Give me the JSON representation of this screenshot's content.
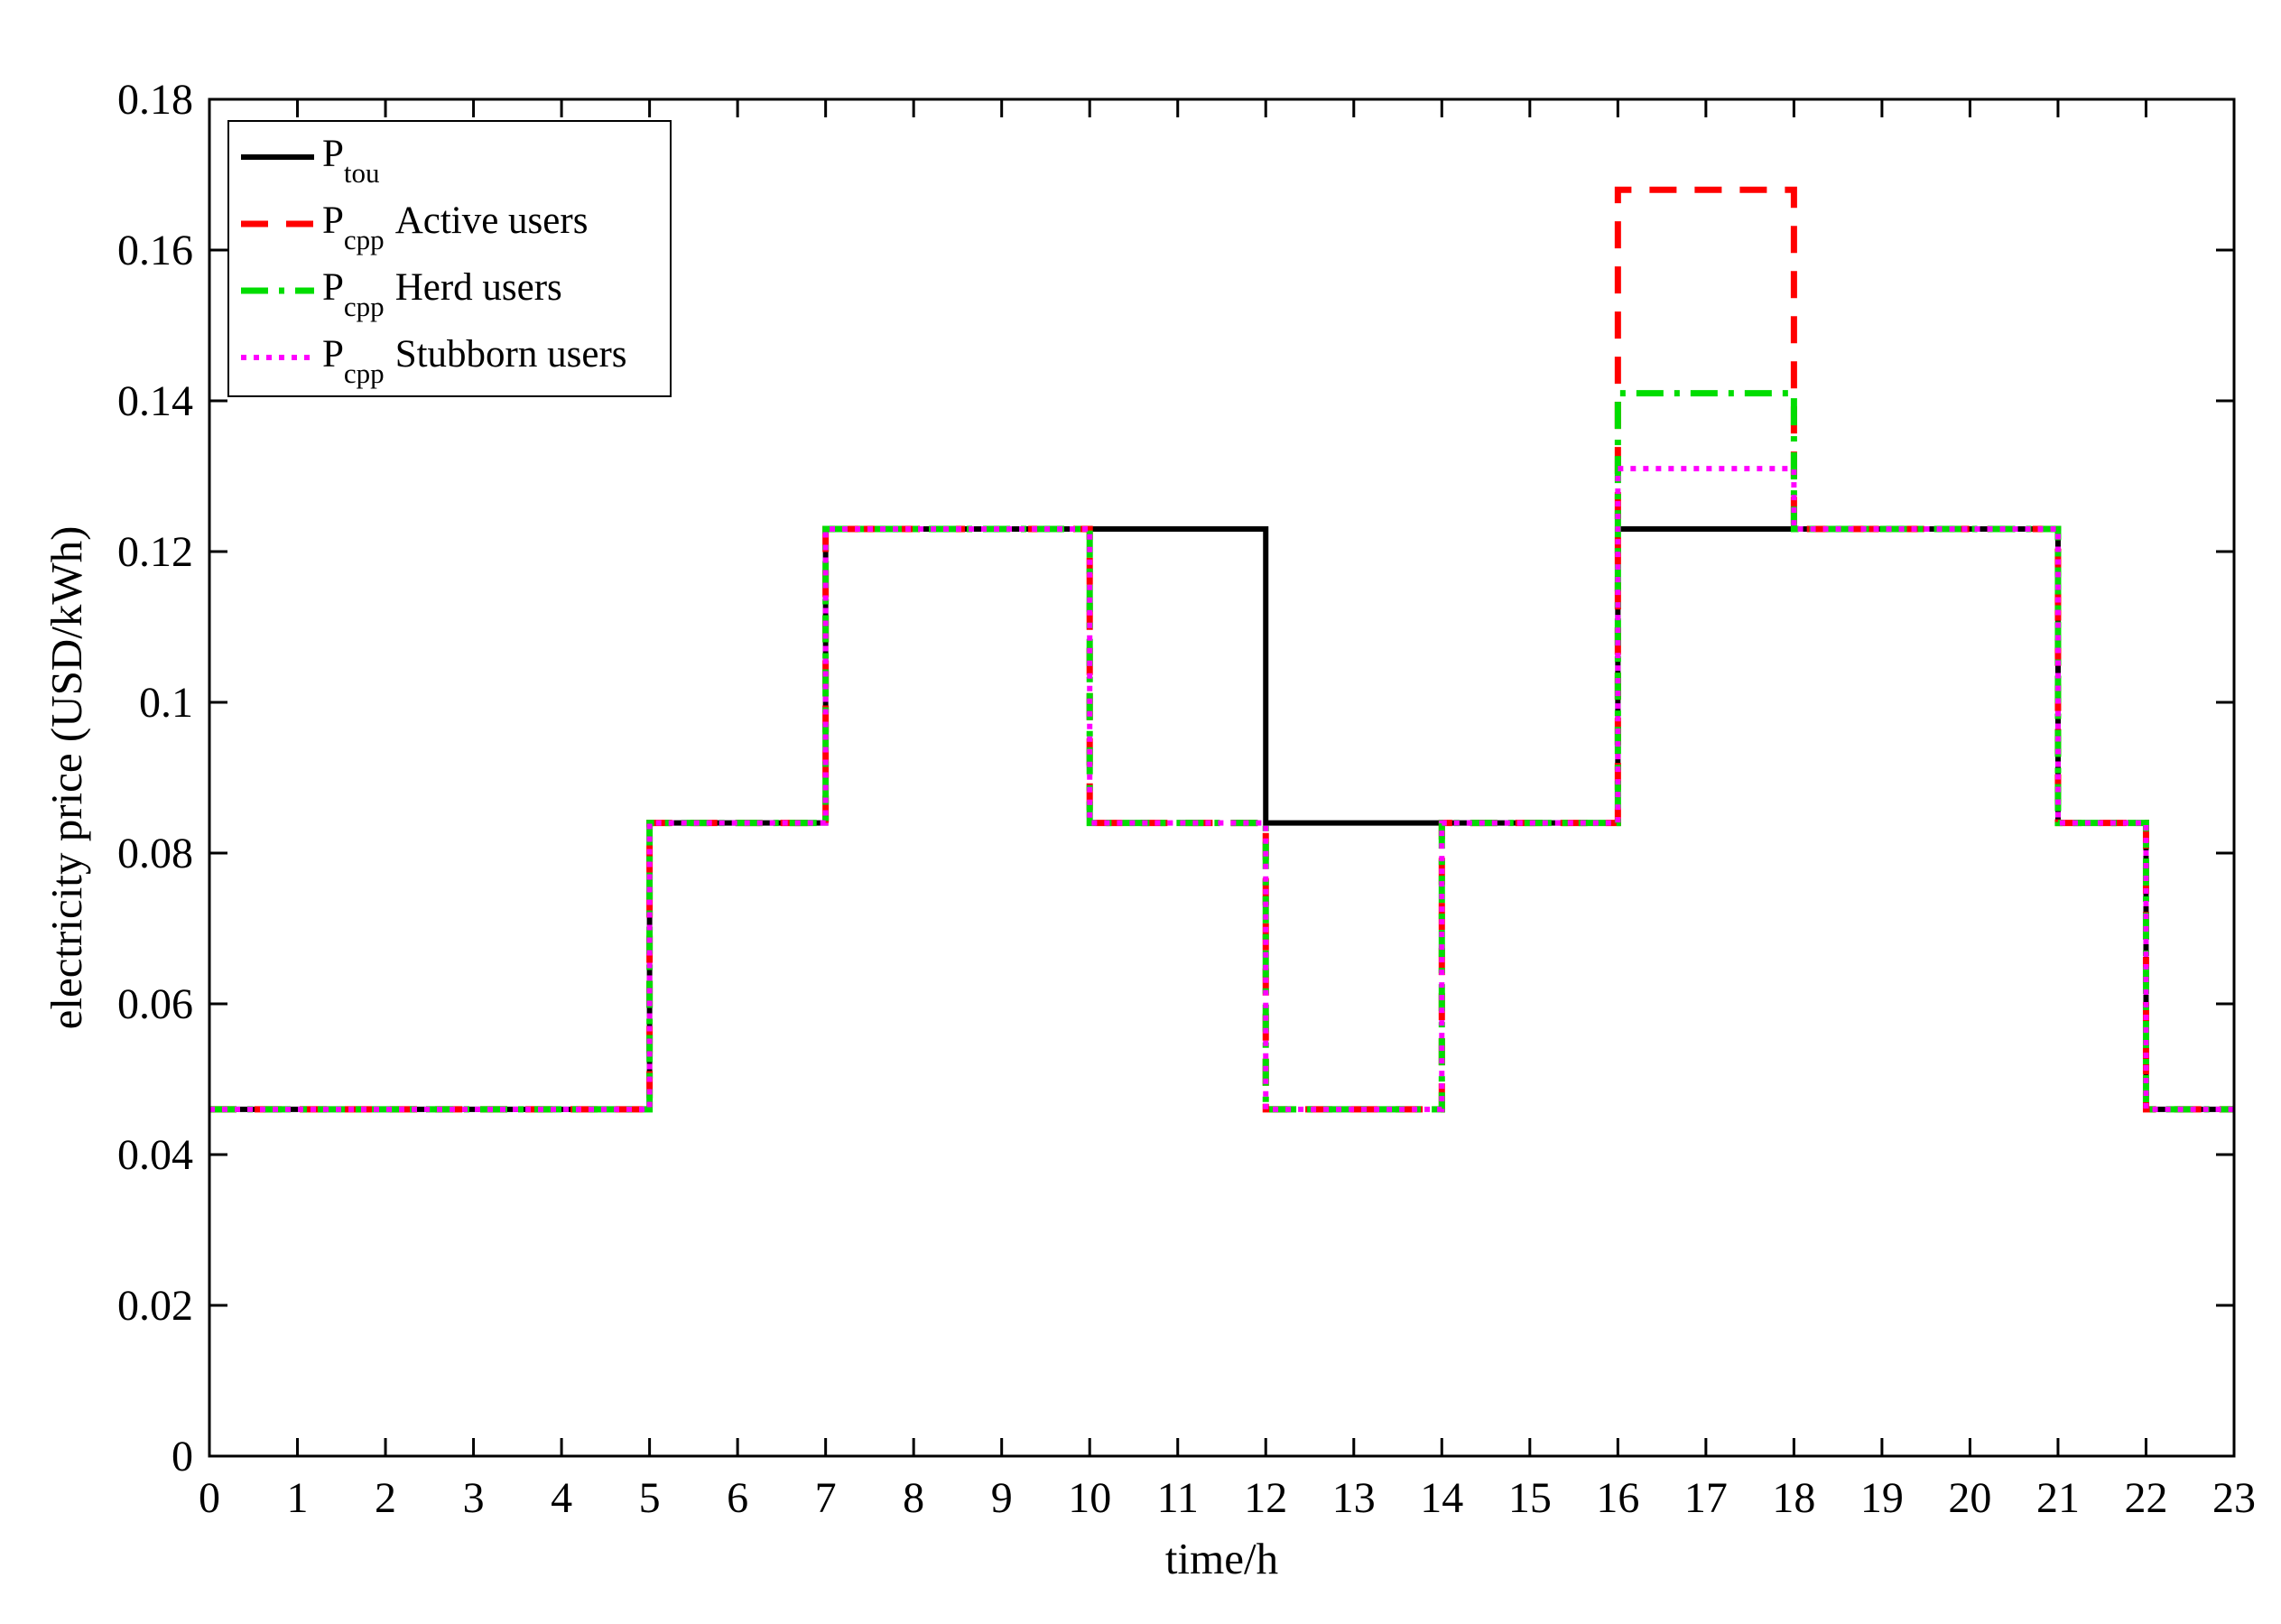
{
  "chart_data": {
    "type": "line",
    "step": "post",
    "title": "",
    "xlabel": "time/h",
    "ylabel": "electricity price (USD/kWh)",
    "xlim": [
      0,
      23
    ],
    "ylim": [
      0,
      0.18
    ],
    "x_ticks": [
      0,
      1,
      2,
      3,
      4,
      5,
      6,
      7,
      8,
      9,
      10,
      11,
      12,
      13,
      14,
      15,
      16,
      17,
      18,
      19,
      20,
      21,
      22,
      23
    ],
    "x_tick_labels": [
      "0",
      "1",
      "2",
      "3",
      "4",
      "5",
      "6",
      "7",
      "8",
      "9",
      "10",
      "11",
      "12",
      "13",
      "14",
      "15",
      "16",
      "17",
      "18",
      "19",
      "20",
      "21",
      "22",
      "23"
    ],
    "y_ticks": [
      0,
      0.02,
      0.04,
      0.06,
      0.08,
      0.1,
      0.12,
      0.14,
      0.16,
      0.18
    ],
    "y_tick_labels": [
      "0",
      "0.02",
      "0.04",
      "0.06",
      "0.08",
      "0.1",
      "0.12",
      "0.14",
      "0.16",
      "0.18"
    ],
    "grid": false,
    "legend_position": "top-left",
    "series": [
      {
        "name": "P_tou",
        "label_main": "P",
        "label_sub": "tou",
        "label_rest": "",
        "color": "#000000",
        "style": "solid",
        "x": [
          0,
          5,
          7,
          12,
          14,
          16,
          18,
          21,
          22,
          23
        ],
        "y": [
          0.046,
          0.084,
          0.123,
          0.084,
          0.084,
          0.123,
          0.123,
          0.084,
          0.046,
          0.046
        ]
      },
      {
        "name": "P_cpp Active users",
        "label_main": "P",
        "label_sub": "cpp",
        "label_rest": "Active users",
        "color": "#ff0000",
        "style": "dashed",
        "x": [
          0,
          5,
          7,
          10,
          12,
          14,
          16,
          18,
          21,
          22,
          23
        ],
        "y": [
          0.046,
          0.084,
          0.123,
          0.084,
          0.046,
          0.084,
          0.168,
          0.123,
          0.084,
          0.046,
          0.046
        ]
      },
      {
        "name": "P_cpp Herd users",
        "label_main": "P",
        "label_sub": "cpp",
        "label_rest": "Herd users",
        "color": "#00dd00",
        "style": "dashdot",
        "x": [
          0,
          5,
          7,
          10,
          12,
          14,
          16,
          18,
          21,
          22,
          23
        ],
        "y": [
          0.046,
          0.084,
          0.123,
          0.084,
          0.046,
          0.084,
          0.141,
          0.123,
          0.084,
          0.046,
          0.046
        ]
      },
      {
        "name": "P_cpp Stubborn users",
        "label_main": "P",
        "label_sub": "cpp",
        "label_rest": "Stubborn users",
        "color": "#ff00ff",
        "style": "dotted",
        "x": [
          0,
          5,
          7,
          10,
          12,
          14,
          16,
          18,
          21,
          22,
          23
        ],
        "y": [
          0.046,
          0.084,
          0.123,
          0.084,
          0.046,
          0.084,
          0.131,
          0.123,
          0.084,
          0.046,
          0.046
        ]
      }
    ]
  }
}
